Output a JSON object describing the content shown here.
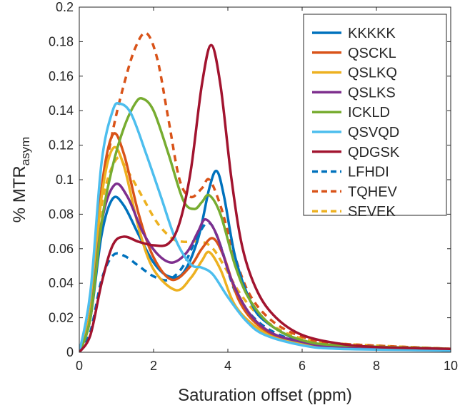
{
  "chart_data": {
    "type": "line",
    "title": "",
    "xlabel": "Saturation offset (ppm)",
    "ylabel_main": "% MTR",
    "ylabel_sub": "asym",
    "xlim": [
      0,
      10
    ],
    "ylim": [
      0,
      0.2
    ],
    "xticks": [
      "0",
      "2",
      "4",
      "6",
      "8",
      "10"
    ],
    "yticks": [
      "0",
      "0.02",
      "0.04",
      "0.06",
      "0.08",
      "0.1",
      "0.12",
      "0.14",
      "0.16",
      "0.18",
      "0.2"
    ],
    "grid": false,
    "legend_position": "top-right",
    "series": [
      {
        "name": "KKKKK",
        "color": "#0072BD",
        "dash": false,
        "points": [
          [
            0,
            0
          ],
          [
            0.3,
            0.02
          ],
          [
            0.6,
            0.068
          ],
          [
            0.9,
            0.089
          ],
          [
            1.2,
            0.085
          ],
          [
            1.6,
            0.068
          ],
          [
            2,
            0.052
          ],
          [
            2.4,
            0.044
          ],
          [
            2.8,
            0.046
          ],
          [
            3.2,
            0.066
          ],
          [
            3.5,
            0.095
          ],
          [
            3.7,
            0.105
          ],
          [
            3.9,
            0.09
          ],
          [
            4.2,
            0.055
          ],
          [
            4.6,
            0.03
          ],
          [
            5,
            0.018
          ],
          [
            6,
            0.006
          ],
          [
            7,
            0.003
          ],
          [
            8,
            0.002
          ],
          [
            10,
            0.001
          ]
        ]
      },
      {
        "name": "QSCKL",
        "color": "#D95319",
        "dash": false,
        "points": [
          [
            0,
            0
          ],
          [
            0.3,
            0.025
          ],
          [
            0.6,
            0.095
          ],
          [
            0.9,
            0.126
          ],
          [
            1.2,
            0.115
          ],
          [
            1.6,
            0.08
          ],
          [
            2,
            0.055
          ],
          [
            2.5,
            0.042
          ],
          [
            3,
            0.05
          ],
          [
            3.3,
            0.06
          ],
          [
            3.6,
            0.066
          ],
          [
            3.9,
            0.055
          ],
          [
            4.3,
            0.03
          ],
          [
            4.8,
            0.016
          ],
          [
            5.5,
            0.008
          ],
          [
            7,
            0.003
          ],
          [
            10,
            0.001
          ]
        ]
      },
      {
        "name": "QSLKQ",
        "color": "#EDB120",
        "dash": false,
        "points": [
          [
            0,
            0
          ],
          [
            0.3,
            0.024
          ],
          [
            0.6,
            0.09
          ],
          [
            0.9,
            0.118
          ],
          [
            1.2,
            0.108
          ],
          [
            1.6,
            0.072
          ],
          [
            2,
            0.048
          ],
          [
            2.6,
            0.036
          ],
          [
            3,
            0.043
          ],
          [
            3.3,
            0.053
          ],
          [
            3.5,
            0.058
          ],
          [
            3.8,
            0.048
          ],
          [
            4.2,
            0.027
          ],
          [
            4.8,
            0.014
          ],
          [
            5.5,
            0.007
          ],
          [
            7,
            0.003
          ],
          [
            10,
            0.001
          ]
        ]
      },
      {
        "name": "QSLKS",
        "color": "#7E2F8E",
        "dash": false,
        "points": [
          [
            0,
            0
          ],
          [
            0.3,
            0.02
          ],
          [
            0.6,
            0.075
          ],
          [
            0.95,
            0.097
          ],
          [
            1.3,
            0.09
          ],
          [
            1.7,
            0.07
          ],
          [
            2.1,
            0.057
          ],
          [
            2.5,
            0.052
          ],
          [
            2.9,
            0.058
          ],
          [
            3.2,
            0.07
          ],
          [
            3.4,
            0.077
          ],
          [
            3.7,
            0.068
          ],
          [
            4.1,
            0.042
          ],
          [
            4.6,
            0.022
          ],
          [
            5.2,
            0.011
          ],
          [
            6,
            0.006
          ],
          [
            7,
            0.003
          ],
          [
            10,
            0.001
          ]
        ]
      },
      {
        "name": "ICKLD",
        "color": "#77AC30",
        "dash": false,
        "points": [
          [
            0,
            0
          ],
          [
            0.3,
            0.02
          ],
          [
            0.6,
            0.075
          ],
          [
            0.9,
            0.108
          ],
          [
            1.2,
            0.13
          ],
          [
            1.5,
            0.144
          ],
          [
            1.7,
            0.147
          ],
          [
            2,
            0.14
          ],
          [
            2.4,
            0.115
          ],
          [
            2.8,
            0.088
          ],
          [
            3.1,
            0.083
          ],
          [
            3.3,
            0.087
          ],
          [
            3.5,
            0.091
          ],
          [
            3.8,
            0.08
          ],
          [
            4.2,
            0.05
          ],
          [
            4.6,
            0.03
          ],
          [
            5.2,
            0.015
          ],
          [
            6,
            0.007
          ],
          [
            7,
            0.004
          ],
          [
            10,
            0.002
          ]
        ]
      },
      {
        "name": "QSVQD",
        "color": "#4DBEEE",
        "dash": false,
        "points": [
          [
            0,
            0
          ],
          [
            0.3,
            0.035
          ],
          [
            0.6,
            0.11
          ],
          [
            0.9,
            0.14
          ],
          [
            1.1,
            0.144
          ],
          [
            1.4,
            0.138
          ],
          [
            1.8,
            0.115
          ],
          [
            2.2,
            0.09
          ],
          [
            2.6,
            0.065
          ],
          [
            3,
            0.051
          ],
          [
            3.3,
            0.049
          ],
          [
            3.6,
            0.045
          ],
          [
            4,
            0.032
          ],
          [
            4.5,
            0.018
          ],
          [
            5,
            0.01
          ],
          [
            6,
            0.004
          ],
          [
            7,
            0.002
          ],
          [
            10,
            0.001
          ]
        ]
      },
      {
        "name": "QDGSK",
        "color": "#A2142F",
        "dash": false,
        "points": [
          [
            0,
            0
          ],
          [
            0.3,
            0.01
          ],
          [
            0.6,
            0.04
          ],
          [
            0.9,
            0.062
          ],
          [
            1.2,
            0.067
          ],
          [
            1.6,
            0.064
          ],
          [
            2,
            0.062
          ],
          [
            2.4,
            0.063
          ],
          [
            2.7,
            0.075
          ],
          [
            3,
            0.105
          ],
          [
            3.3,
            0.155
          ],
          [
            3.55,
            0.178
          ],
          [
            3.8,
            0.155
          ],
          [
            4.1,
            0.1
          ],
          [
            4.4,
            0.06
          ],
          [
            4.8,
            0.035
          ],
          [
            5.3,
            0.02
          ],
          [
            6,
            0.01
          ],
          [
            7,
            0.005
          ],
          [
            8,
            0.003
          ],
          [
            10,
            0.002
          ]
        ]
      },
      {
        "name": "LFHDI",
        "color": "#0072BD",
        "dash": true,
        "points": [
          [
            0,
            0
          ],
          [
            0.3,
            0.012
          ],
          [
            0.6,
            0.042
          ],
          [
            0.9,
            0.056
          ],
          [
            1.2,
            0.056
          ],
          [
            1.6,
            0.05
          ],
          [
            2,
            0.044
          ],
          [
            2.4,
            0.042
          ],
          [
            2.8,
            0.05
          ],
          [
            3.2,
            0.068
          ],
          [
            3.5,
            0.075
          ],
          [
            3.8,
            0.062
          ],
          [
            4.2,
            0.035
          ],
          [
            4.7,
            0.02
          ],
          [
            5.3,
            0.011
          ],
          [
            6,
            0.006
          ],
          [
            7,
            0.003
          ],
          [
            10,
            0.001
          ]
        ]
      },
      {
        "name": "TQHEV",
        "color": "#D95319",
        "dash": true,
        "points": [
          [
            0,
            0
          ],
          [
            0.3,
            0.024
          ],
          [
            0.6,
            0.09
          ],
          [
            0.9,
            0.128
          ],
          [
            1.2,
            0.155
          ],
          [
            1.5,
            0.176
          ],
          [
            1.8,
            0.185
          ],
          [
            2.1,
            0.17
          ],
          [
            2.4,
            0.135
          ],
          [
            2.7,
            0.1
          ],
          [
            3,
            0.09
          ],
          [
            3.3,
            0.095
          ],
          [
            3.5,
            0.1
          ],
          [
            3.8,
            0.085
          ],
          [
            4.2,
            0.055
          ],
          [
            4.6,
            0.033
          ],
          [
            5.2,
            0.018
          ],
          [
            6,
            0.009
          ],
          [
            7,
            0.005
          ],
          [
            10,
            0.002
          ]
        ]
      },
      {
        "name": "SEVEK",
        "color": "#EDB120",
        "dash": true,
        "points": [
          [
            0,
            0
          ],
          [
            0.3,
            0.024
          ],
          [
            0.6,
            0.085
          ],
          [
            1,
            0.112
          ],
          [
            1.3,
            0.105
          ],
          [
            1.7,
            0.09
          ],
          [
            2.1,
            0.075
          ],
          [
            2.5,
            0.066
          ],
          [
            2.8,
            0.064
          ],
          [
            3.3,
            0.064
          ],
          [
            3.6,
            0.06
          ],
          [
            3.9,
            0.05
          ],
          [
            4.3,
            0.035
          ],
          [
            4.8,
            0.022
          ],
          [
            5.4,
            0.013
          ],
          [
            6,
            0.008
          ],
          [
            7,
            0.005
          ],
          [
            10,
            0.002
          ]
        ]
      }
    ]
  }
}
